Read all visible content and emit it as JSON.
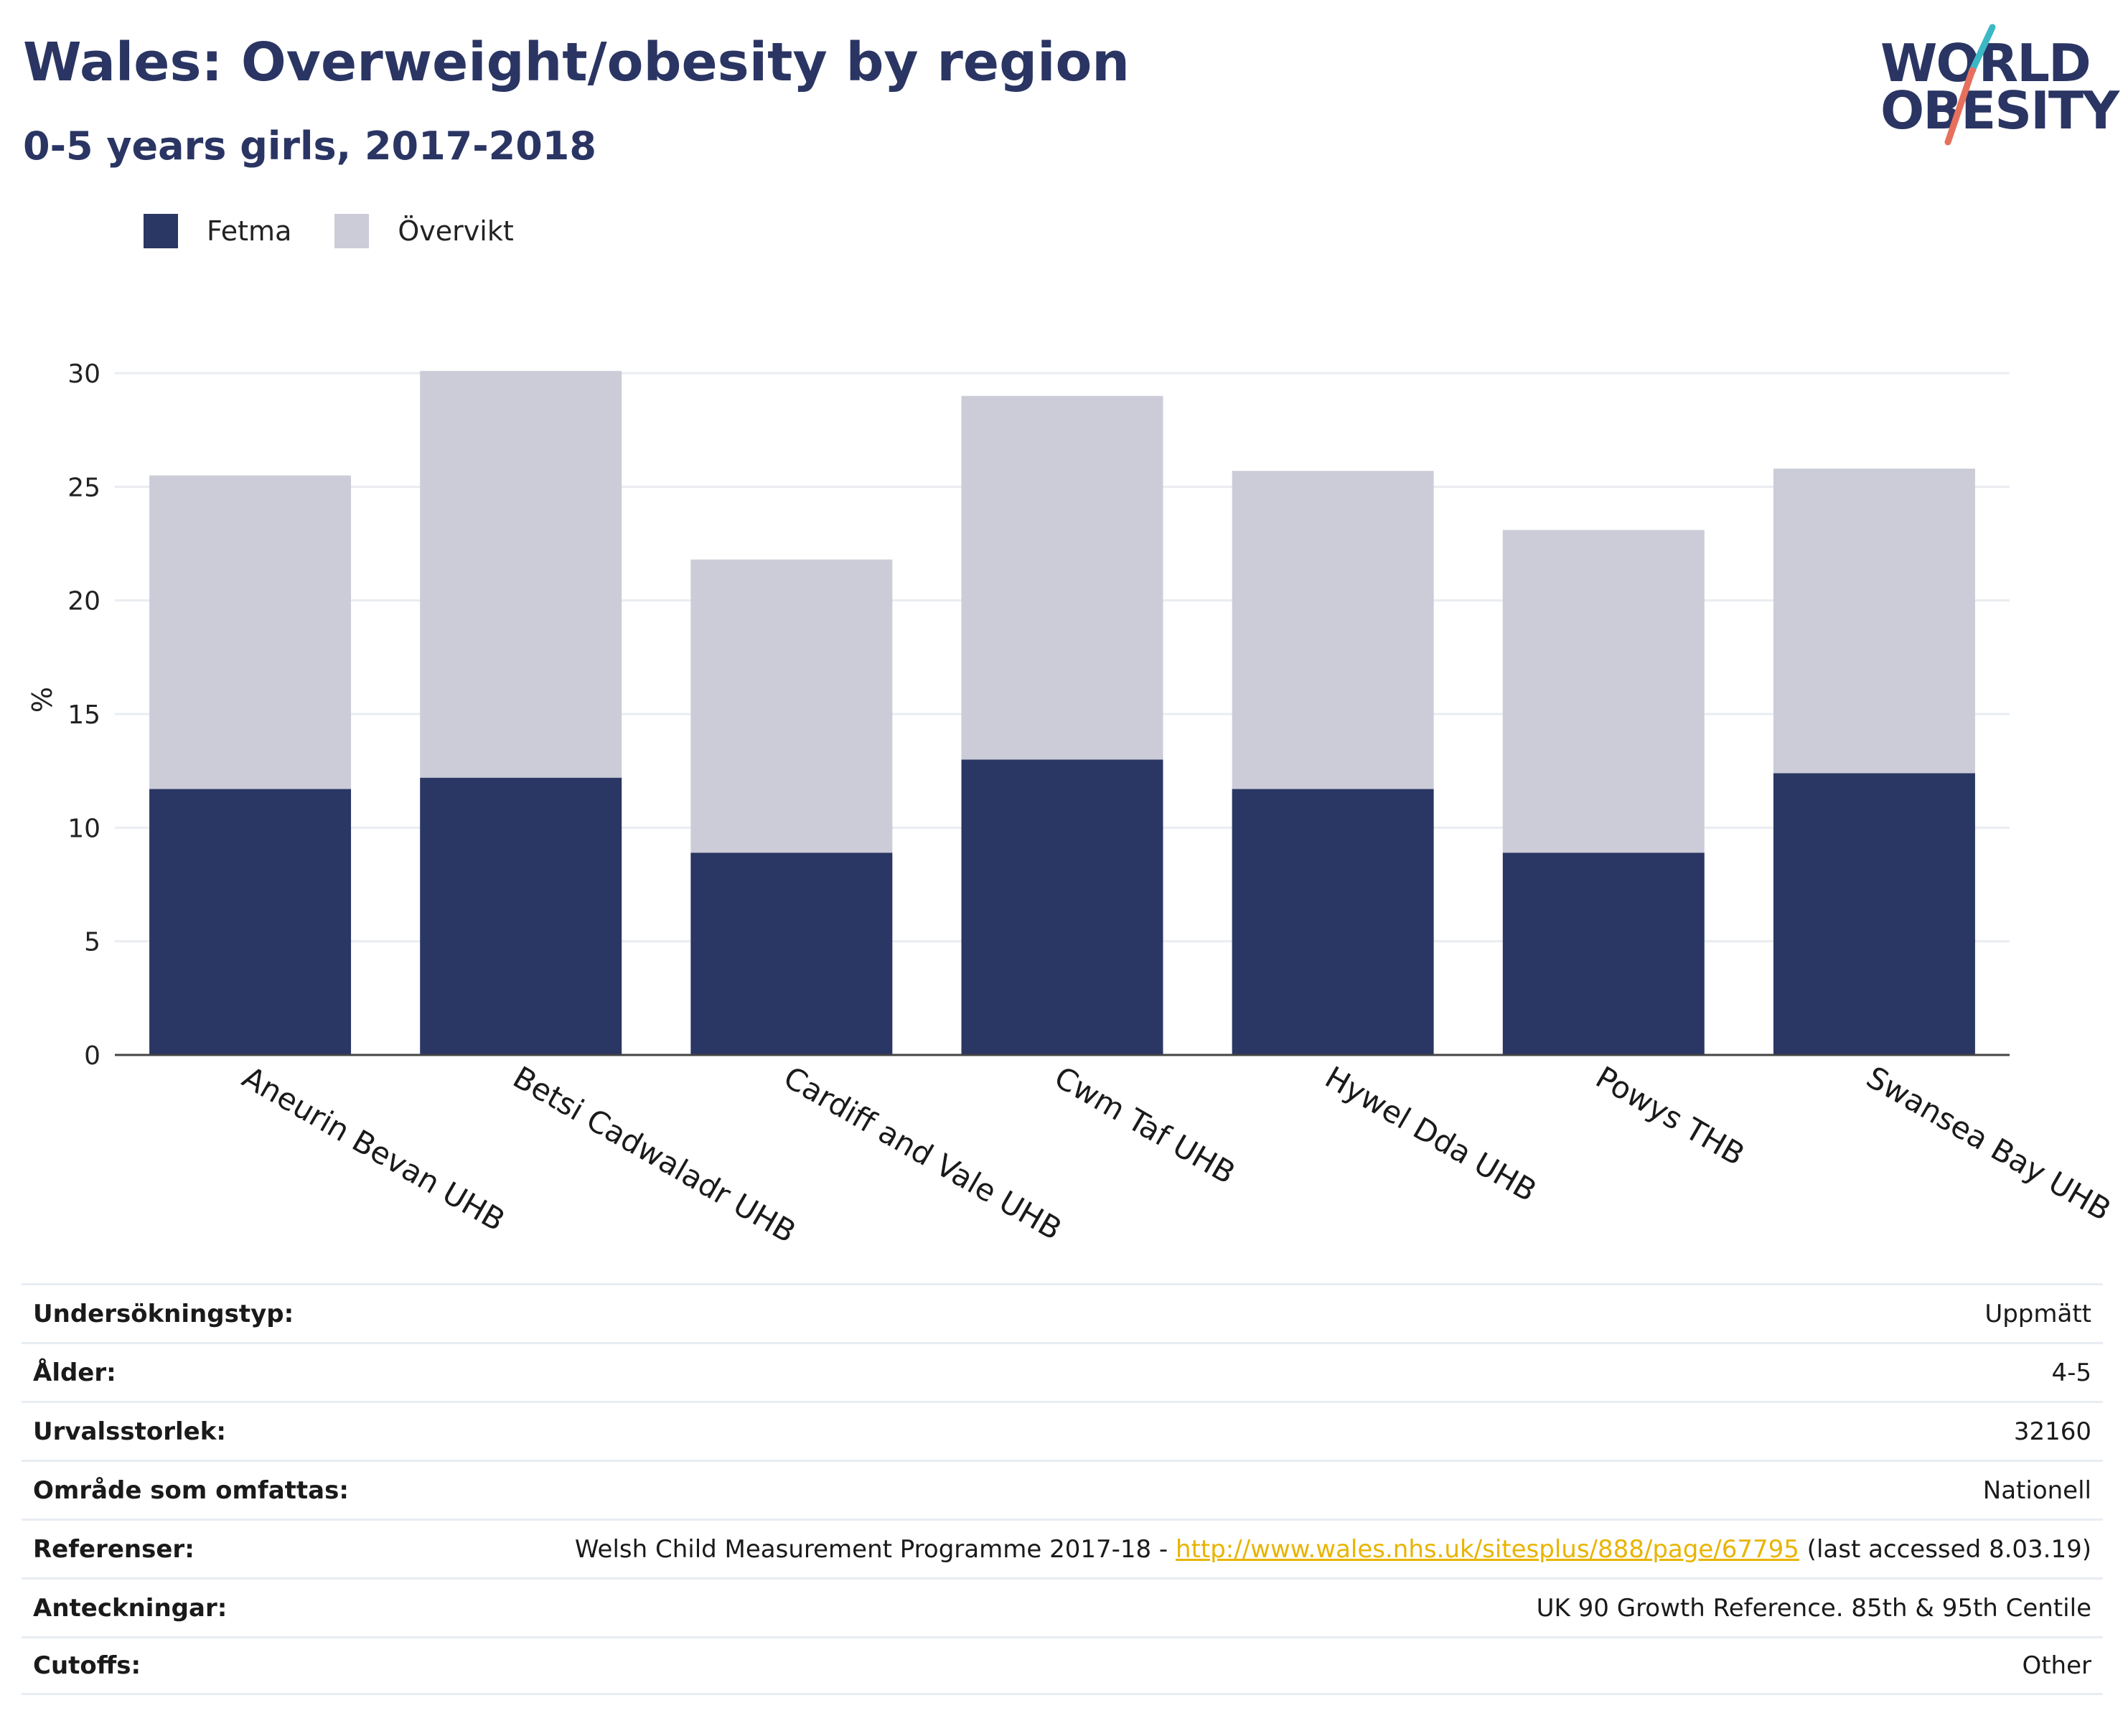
{
  "header": {
    "title": "Wales: Overweight/obesity by region",
    "subtitle": "0-5 years girls, 2017-2018"
  },
  "logo": {
    "line1": "WORLD",
    "line2": "OBESITY"
  },
  "colors": {
    "fetma": "#2a3663",
    "overvikt": "#cbccd8",
    "title": "#2a3563",
    "link": "#e8b400"
  },
  "chart_data": {
    "type": "bar",
    "stacked": true,
    "categories": [
      "Aneurin Bevan UHB",
      "Betsi Cadwaladr UHB",
      "Cardiff and Vale UHB",
      "Cwm Taf UHB",
      "Hywel Dda UHB",
      "Powys THB",
      "Swansea Bay UHB"
    ],
    "series": [
      {
        "name": "Fetma",
        "values": [
          11.7,
          12.2,
          8.9,
          13.0,
          11.7,
          8.9,
          12.4
        ]
      },
      {
        "name": "Övervikt",
        "values": [
          13.8,
          17.9,
          12.9,
          16.0,
          14.0,
          14.2,
          13.4
        ]
      }
    ],
    "ylabel": "%",
    "ylim": [
      0,
      30
    ],
    "yticks": [
      0,
      5,
      10,
      15,
      20,
      25,
      30
    ],
    "grid": true,
    "legend": "top-left"
  },
  "table": {
    "rows": [
      {
        "label": "Undersökningstyp:",
        "value": "Uppmätt"
      },
      {
        "label": "Ålder:",
        "value": "4-5"
      },
      {
        "label": "Urvalsstorlek:",
        "value": "32160"
      },
      {
        "label": "Område som omfattas:",
        "value": "Nationell"
      },
      {
        "label": "Referenser:",
        "value_prefix": "Welsh Child Measurement Programme 2017-18 - ",
        "link": "http://www.wales.nhs.uk/sitesplus/888/page/67795",
        "value_suffix": " (last accessed 8.03.19)"
      },
      {
        "label": "Anteckningar:",
        "value": "UK 90 Growth Reference. 85th & 95th Centile"
      },
      {
        "label": "Cutoffs:",
        "value": "Other"
      }
    ]
  }
}
